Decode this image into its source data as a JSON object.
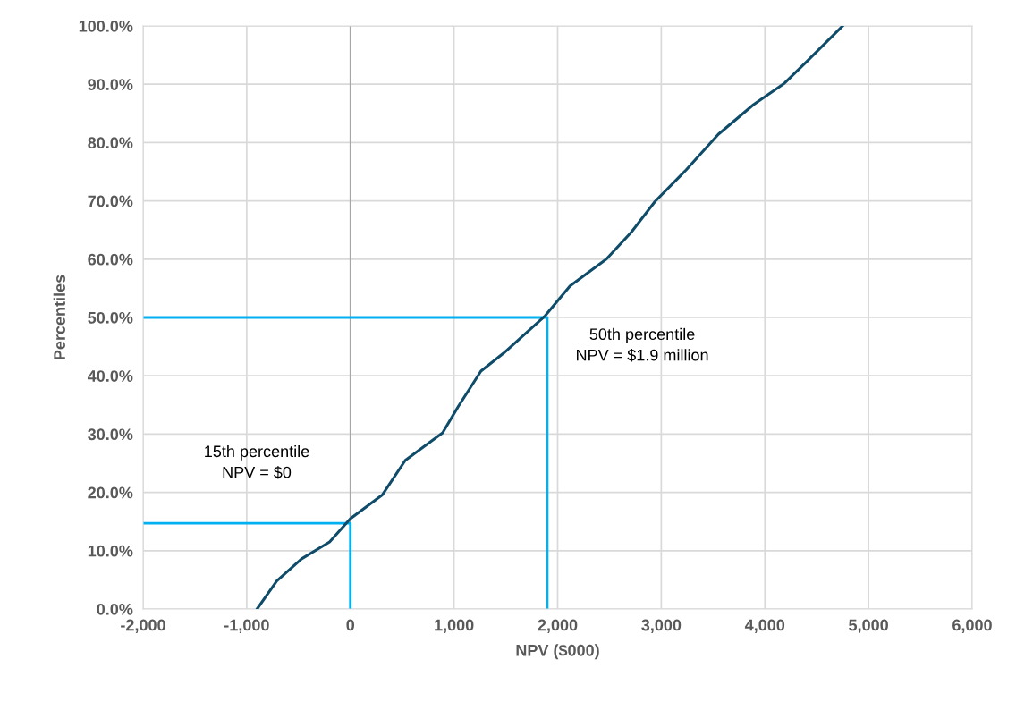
{
  "chart_data": {
    "type": "line",
    "xlabel": "NPV ($000)",
    "ylabel": "Percentiles",
    "xlim": [
      -2000,
      6000
    ],
    "ylim": [
      0,
      100
    ],
    "xticks": [
      {
        "value": -2000,
        "label": "-2,000"
      },
      {
        "value": -1000,
        "label": "-1,000"
      },
      0,
      {
        "value": 1000,
        "label": "1,000"
      },
      {
        "value": 2000,
        "label": "2,000"
      },
      {
        "value": 3000,
        "label": "3,000"
      },
      {
        "value": 4000,
        "label": "4,000"
      },
      {
        "value": 5000,
        "label": "5,000"
      },
      {
        "value": 6000,
        "label": "6,000"
      }
    ],
    "yticks": [
      {
        "value": 0,
        "label": "0.0%"
      },
      {
        "value": 10,
        "label": "10.0%"
      },
      {
        "value": 20,
        "label": "20.0%"
      },
      {
        "value": 30,
        "label": "30.0%"
      },
      {
        "value": 40,
        "label": "40.0%"
      },
      {
        "value": 50,
        "label": "50.0%"
      },
      {
        "value": 60,
        "label": "60.0%"
      },
      {
        "value": 70,
        "label": "70.0%"
      },
      {
        "value": 80,
        "label": "80.0%"
      },
      {
        "value": 90,
        "label": "90.0%"
      },
      {
        "value": 100,
        "label": "100.0%"
      }
    ],
    "grid": true,
    "line_style": "solid",
    "marker": "none",
    "series": [
      {
        "color": "#0f4c6a",
        "x": [
          -900,
          -710,
          -470,
          -200,
          0,
          310,
          530,
          890,
          1040,
          1260,
          1480,
          1880,
          2120,
          2470,
          2710,
          2940,
          3240,
          3550,
          3890,
          4190,
          4410,
          4750
        ],
        "values": [
          0,
          4.8,
          8.6,
          11.5,
          15.5,
          19.6,
          25.5,
          30.2,
          34.7,
          40.8,
          43.9,
          50.3,
          55.4,
          60,
          64.6,
          69.9,
          75.3,
          81.4,
          86.5,
          90.2,
          94,
          100
        ]
      },
      {
        "color": "#00b0f0",
        "x": [
          -2000,
          1900,
          1900
        ],
        "values": [
          50,
          50,
          0
        ]
      },
      {
        "color": "#00b0f0",
        "x": [
          -2000,
          0,
          0
        ],
        "values": [
          14.7,
          14.7,
          0
        ]
      }
    ],
    "ref_lines": [
      {
        "axis": "x",
        "value": 0,
        "color": "#a6a6a6"
      }
    ],
    "annotations": [
      "15th percentile\nNPV = $0",
      "50th percentile\nNPV = $1.9 million"
    ]
  }
}
